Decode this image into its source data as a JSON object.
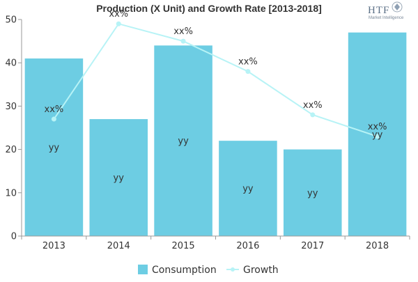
{
  "chart_data": {
    "type": "bar",
    "title": "Production (X Unit) and Growth Rate [2013-2018]",
    "categories": [
      "2013",
      "2014",
      "2015",
      "2016",
      "2017",
      "2018"
    ],
    "series": [
      {
        "name": "Consumption",
        "type": "bar",
        "values": [
          41,
          27,
          44,
          22,
          20,
          47
        ],
        "labels": [
          "yy",
          "yy",
          "yy",
          "yy",
          "yy",
          "yy"
        ],
        "color": "#6dcde3"
      },
      {
        "name": "Growth",
        "type": "line",
        "values": [
          27,
          49,
          45,
          38,
          28,
          23
        ],
        "labels": [
          "xx%",
          "xx%",
          "xx%",
          "xx%",
          "xx%",
          "xx%"
        ],
        "color": "#b7f3f6"
      }
    ],
    "yticks": [
      "0",
      "10",
      "20",
      "30",
      "40",
      "50"
    ],
    "ylim": [
      0,
      50
    ],
    "xlabel": "",
    "ylabel": "",
    "grid": false,
    "legend_position": "bottom-center"
  },
  "logo": {
    "brand": "HTF",
    "tagline": "Market Intelligence"
  }
}
